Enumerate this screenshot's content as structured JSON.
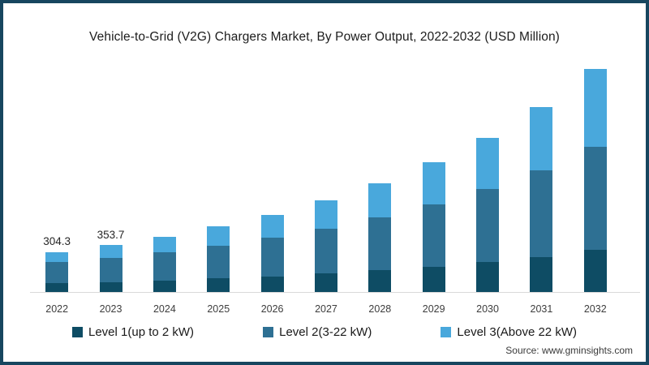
{
  "title": "Vehicle-to-Grid (V2G) Chargers Market, By Power Output, 2022-2032 (USD Million)",
  "source_note": "Source: www.gminsights.com",
  "colors": {
    "frame_border": "#17465f",
    "background": "#ffffff",
    "level1": "#0e4c64",
    "level2": "#2e7093",
    "level3": "#49a8dc",
    "axis_line": "#d9d9d9",
    "title_text": "#1c1c1c",
    "label_text": "#262626"
  },
  "legend": {
    "items": [
      {
        "label": "Level 1(up to 2 kW)",
        "color_key": "level1"
      },
      {
        "label": "Level 2(3-22 kW)",
        "color_key": "level2"
      },
      {
        "label": "Level 3(Above 22 kW)",
        "color_key": "level3"
      }
    ]
  },
  "chart_data": {
    "type": "bar",
    "stacked": true,
    "title": "Vehicle-to-Grid (V2G) Chargers Market, By Power Output, 2022-2032 (USD Million)",
    "xlabel": "",
    "ylabel": "USD Million",
    "categories": [
      "2022",
      "2023",
      "2024",
      "2025",
      "2026",
      "2027",
      "2028",
      "2029",
      "2030",
      "2031",
      "2032"
    ],
    "series": [
      {
        "name": "Level 1(up to 2 kW)",
        "color": "#0e4c64",
        "values": [
          67,
          76,
          89,
          103,
          120,
          140,
          164,
          192,
          225,
          267,
          318
        ]
      },
      {
        "name": "Level 2(3-22 kW)",
        "color": "#2e7093",
        "values": [
          161,
          182,
          214,
          249,
          291,
          342,
          401,
          471,
          553,
          657,
          784
        ]
      },
      {
        "name": "Level 3(Above 22 kW)",
        "color": "#49a8dc",
        "values": [
          76.3,
          95.7,
          117,
          143,
          174,
          213,
          260,
          317,
          387,
          476,
          588
        ]
      }
    ],
    "totals": [
      304.3,
      353.7,
      420,
      495,
      585,
      695,
      825,
      980,
      1165,
      1400,
      1690
    ],
    "data_labels": {
      "2022": "304.3",
      "2023": "353.7"
    },
    "values_estimated_except_labeled": true,
    "ylim": [
      0,
      1750
    ],
    "grid": false,
    "legend_position": "bottom",
    "y_axis_shown": false
  }
}
